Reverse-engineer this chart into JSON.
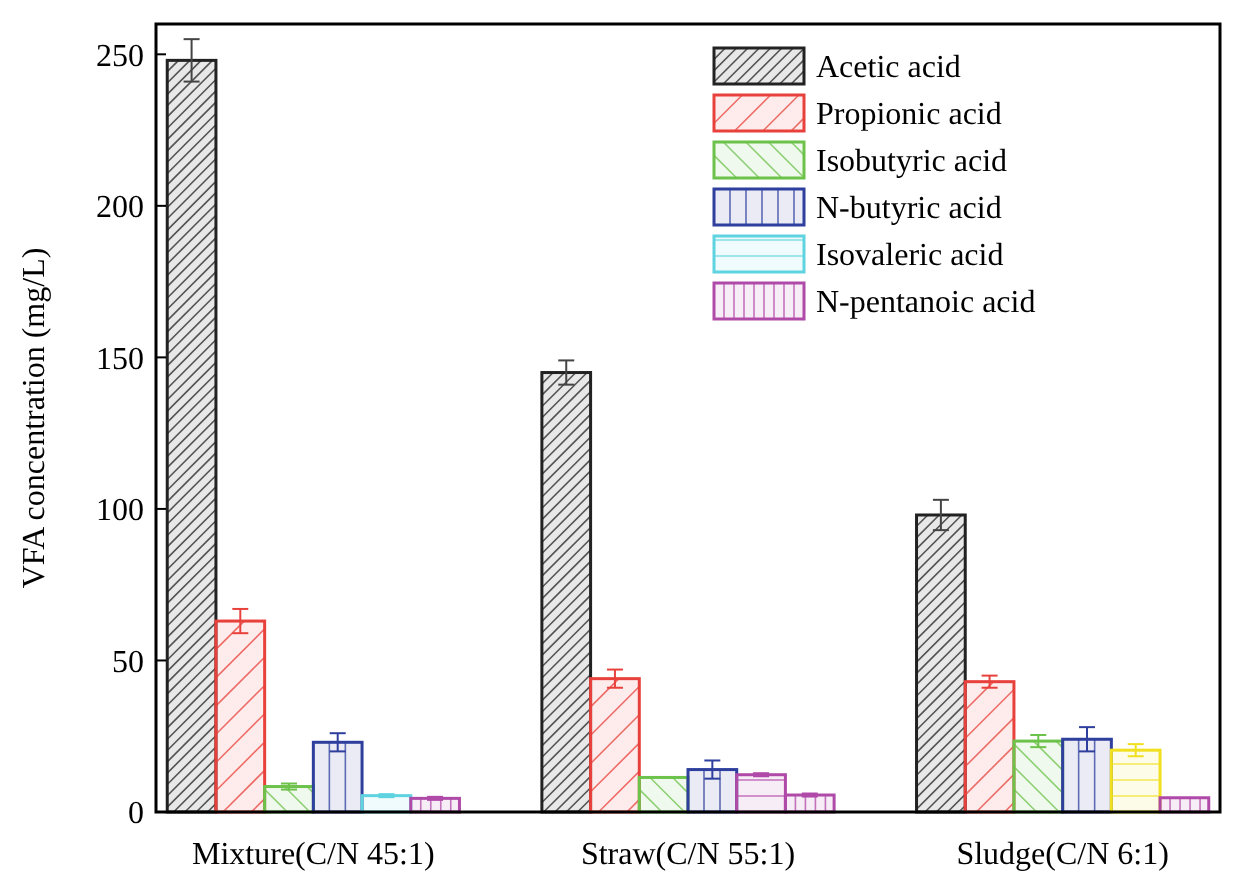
{
  "chart_data": {
    "type": "bar",
    "ylabel": "VFA concentration (mg/L)",
    "categories": [
      "Mixture(C/N 45:1)",
      "Straw(C/N 55:1)",
      "Sludge(C/N 6:1)"
    ],
    "ylim": [
      0,
      260
    ],
    "yticks": [
      0,
      50,
      100,
      150,
      200,
      250
    ],
    "grid": false,
    "legend": "top right",
    "series": [
      {
        "name": "Acetic acid",
        "color": "#222222",
        "values": [
          248,
          145,
          98
        ],
        "errors": [
          7,
          4,
          5
        ]
      },
      {
        "name": "Propionic acid",
        "color": "#e8413c",
        "values": [
          63,
          44,
          43
        ],
        "errors": [
          4,
          3,
          2
        ]
      },
      {
        "name": "Isobutyric acid",
        "color": "#6cc24a",
        "values": [
          8.4,
          11.4,
          23.4
        ],
        "errors": [
          1,
          null,
          2
        ]
      },
      {
        "name": "N-butyric acid",
        "color": "#2e3f9e",
        "values": [
          23,
          14,
          24
        ],
        "errors": [
          3,
          3,
          4
        ]
      },
      {
        "name": "Isovaleric acid",
        "color": "#5fd3e0",
        "colors": [
          "#5fd3e0",
          "#b04aa8",
          "#f0e020"
        ],
        "values": [
          5.4,
          12.3,
          20.4
        ],
        "errors": [
          0.5,
          0.5,
          2
        ]
      },
      {
        "name": "N-pentanoic acid",
        "color": "#b04aa8",
        "values": [
          4.5,
          5.6,
          4.7
        ],
        "errors": [
          0.5,
          0.5,
          null
        ]
      }
    ]
  }
}
